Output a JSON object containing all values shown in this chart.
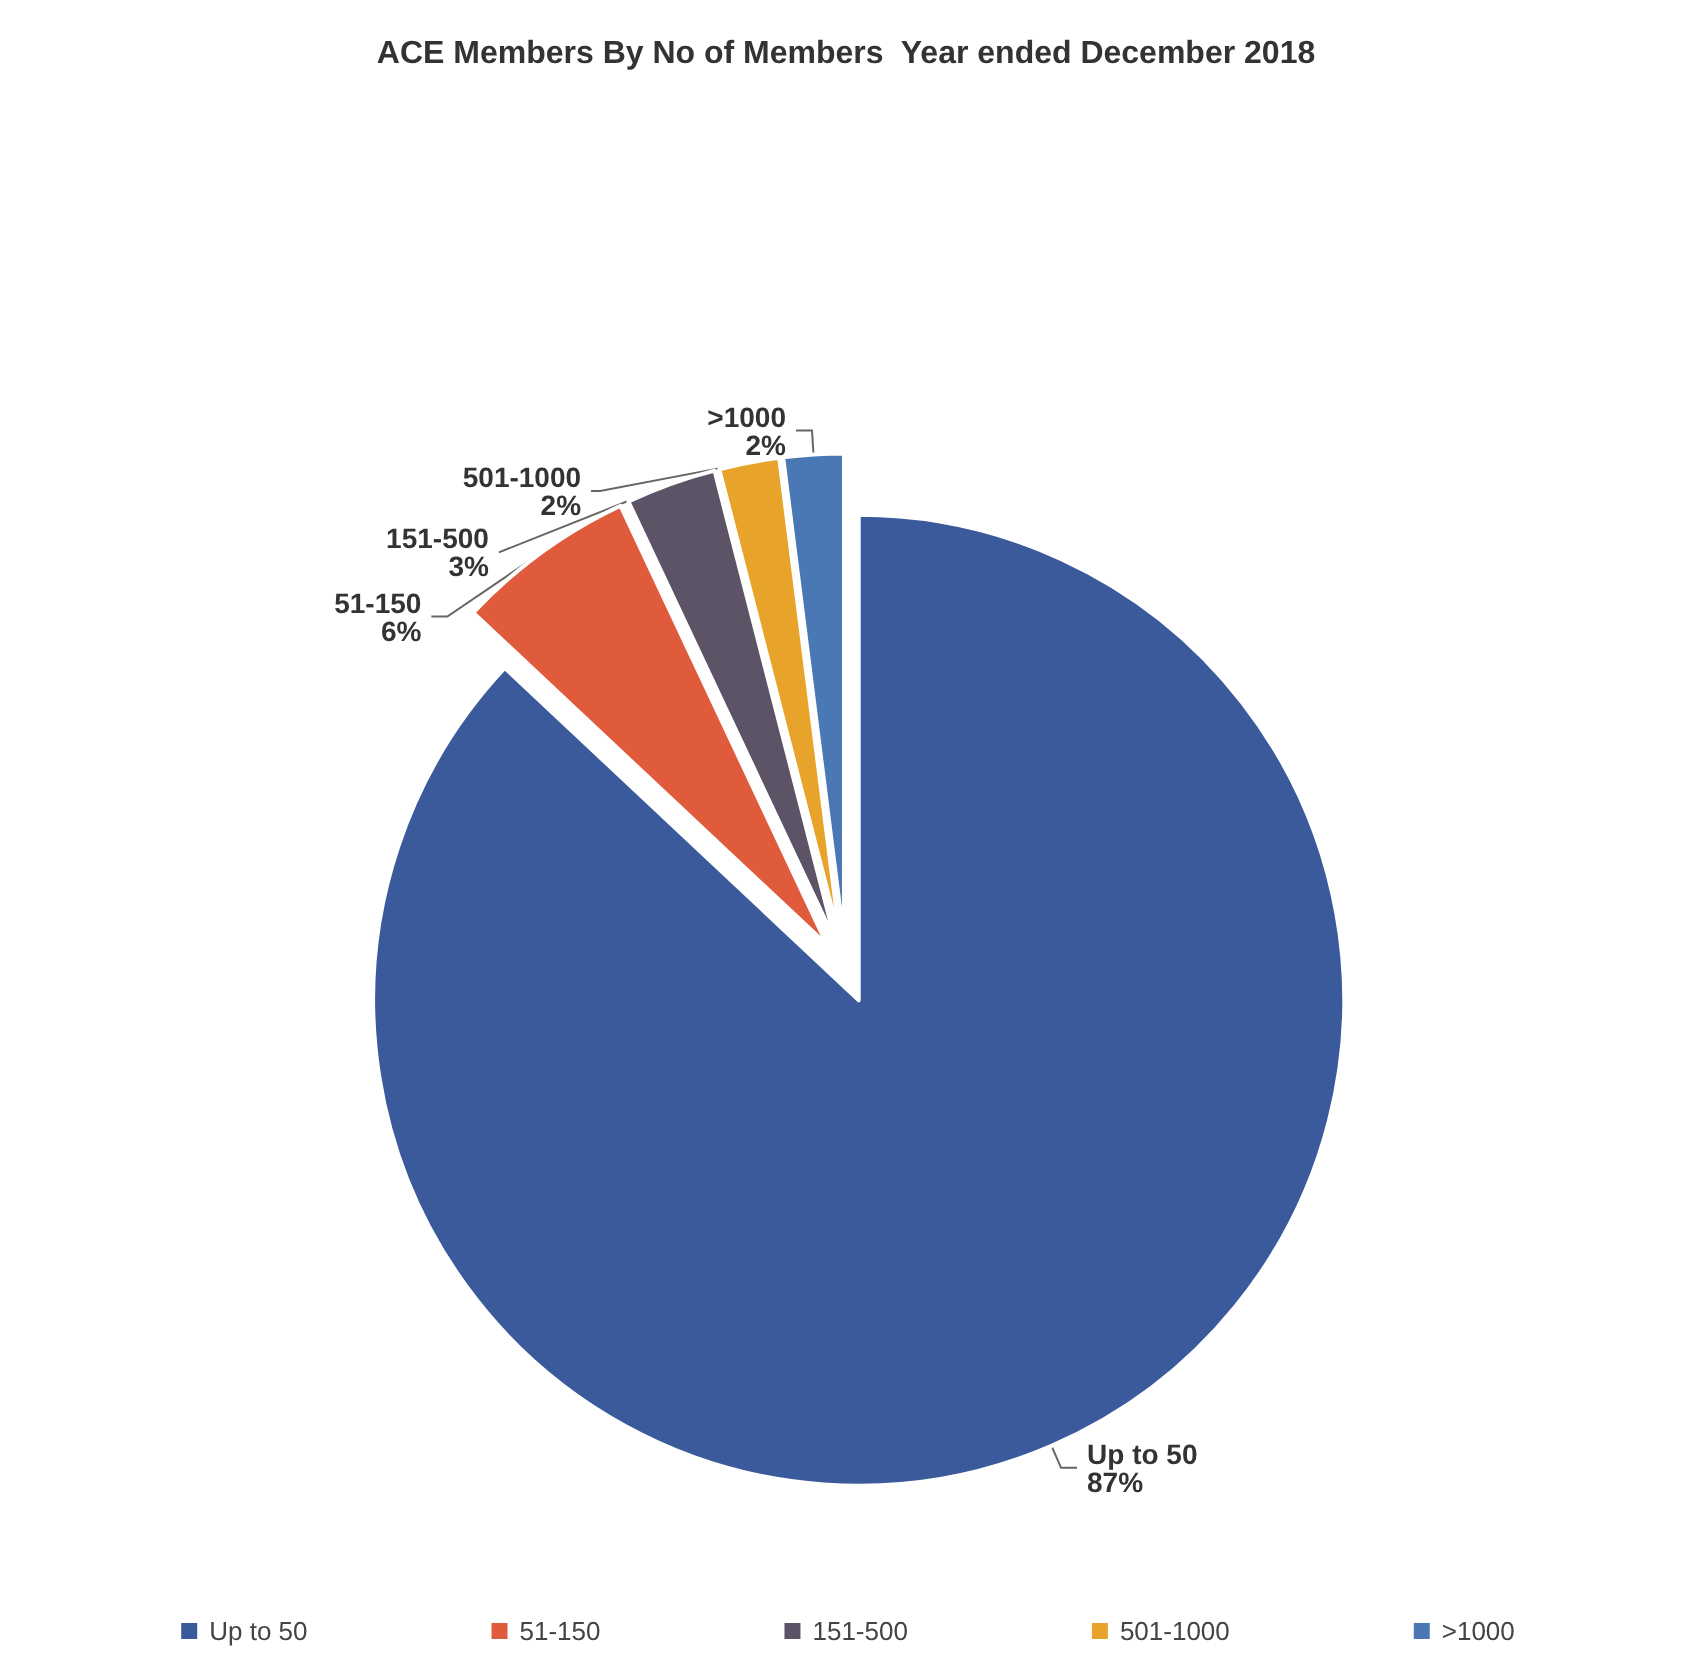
{
  "chart_data": {
    "type": "pie",
    "title": "ACE Members By No of Members  Year ended December 2018",
    "categories": [
      "Up to 50",
      "51-150",
      "151-500",
      "501-1000",
      ">1000"
    ],
    "values": [
      87,
      6,
      3,
      2,
      2
    ],
    "value_labels": [
      "87%",
      "6%",
      "3%",
      "2%",
      "2%"
    ],
    "colors": [
      "#3a5a9c",
      "#e05a3c",
      "#5c5366",
      "#e8a32a",
      "#4a78b4"
    ],
    "legend": "bottom"
  }
}
